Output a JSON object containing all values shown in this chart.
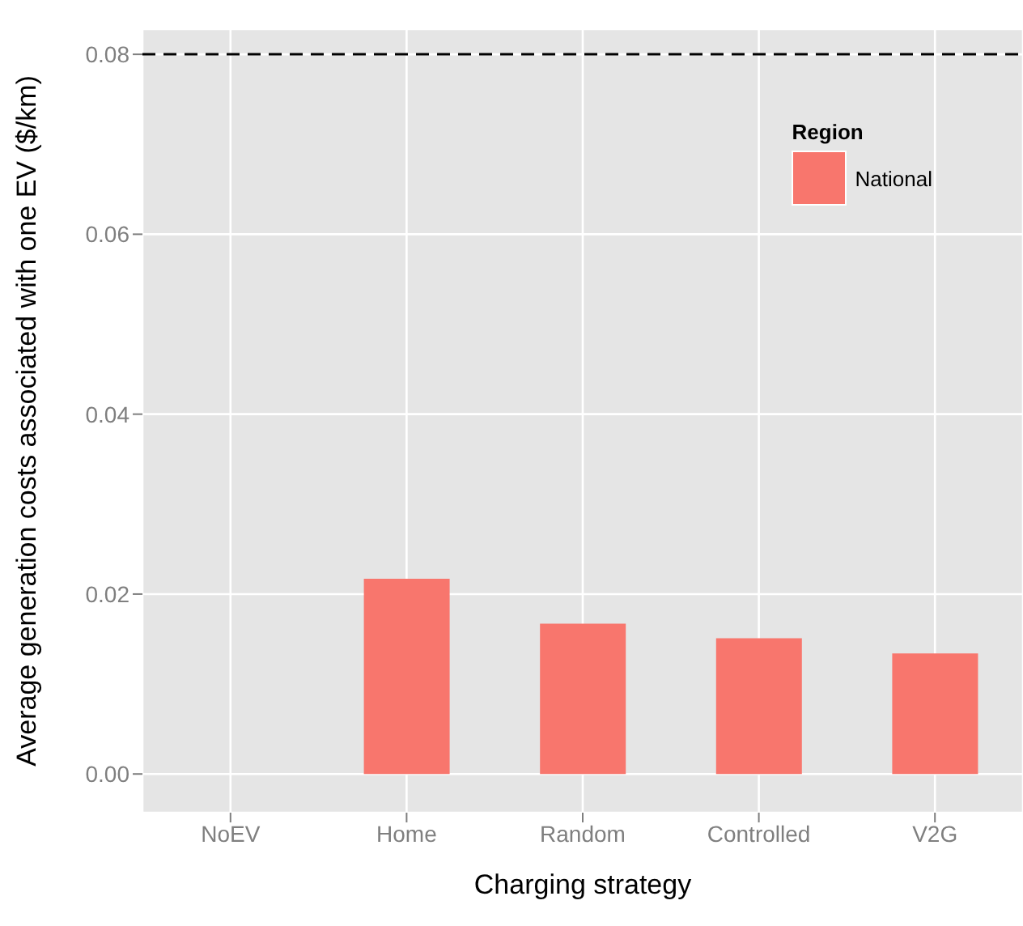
{
  "chart_data": {
    "type": "bar",
    "xlabel": "Charging strategy",
    "ylabel": "Average generation costs associated with one EV ($/km)",
    "legend_title": "Region",
    "categories": [
      "NoEV",
      "Home",
      "Random",
      "Controlled",
      "V2G"
    ],
    "series": [
      {
        "name": "National",
        "color": "#f8766d",
        "values": [
          0,
          0.0217,
          0.0167,
          0.0151,
          0.0134
        ]
      }
    ],
    "ylim": [
      -0.0043,
      0.0828
    ],
    "yticks": [
      {
        "value": 0,
        "label": "0.00"
      },
      0.02,
      0.04,
      0.06,
      0.08
    ],
    "ref_lines": [
      {
        "axis": "y",
        "value": 0.08,
        "color": "#000000",
        "line_style": "dashed"
      }
    ],
    "grid": true,
    "legend": "top right"
  }
}
